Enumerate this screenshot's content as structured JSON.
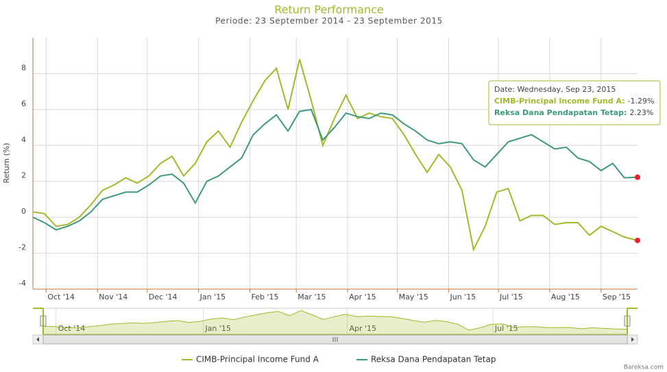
{
  "chart_data": {
    "type": "line",
    "title": "Return Performance",
    "subtitle": "Periode: 23 September 2014 - 23 September 2015",
    "y_label": "Return (%)",
    "credits": "Bareksa.com",
    "x": [
      "2014-09-23",
      "2014-09-30",
      "2014-10-07",
      "2014-10-14",
      "2014-10-21",
      "2014-10-28",
      "2014-11-04",
      "2014-11-11",
      "2014-11-18",
      "2014-11-25",
      "2014-12-02",
      "2014-12-09",
      "2014-12-16",
      "2014-12-23",
      "2014-12-30",
      "2015-01-06",
      "2015-01-13",
      "2015-01-20",
      "2015-01-27",
      "2015-02-03",
      "2015-02-10",
      "2015-02-17",
      "2015-02-24",
      "2015-03-03",
      "2015-03-10",
      "2015-03-17",
      "2015-03-24",
      "2015-03-31",
      "2015-04-07",
      "2015-04-14",
      "2015-04-21",
      "2015-04-28",
      "2015-05-05",
      "2015-05-12",
      "2015-05-19",
      "2015-05-26",
      "2015-06-02",
      "2015-06-09",
      "2015-06-16",
      "2015-06-23",
      "2015-06-30",
      "2015-07-07",
      "2015-07-14",
      "2015-07-21",
      "2015-07-28",
      "2015-08-04",
      "2015-08-11",
      "2015-08-18",
      "2015-08-25",
      "2015-09-01",
      "2015-09-08",
      "2015-09-15",
      "2015-09-23"
    ],
    "series": [
      {
        "name": "CIMB-Principal Income Fund A",
        "color": "#a3b92a",
        "values": [
          0.3,
          0.2,
          -0.5,
          -0.4,
          0.0,
          0.7,
          1.5,
          1.8,
          2.2,
          1.9,
          2.3,
          3.0,
          3.4,
          2.3,
          3.0,
          4.2,
          4.8,
          3.9,
          5.3,
          6.5,
          7.6,
          8.3,
          6.0,
          8.8,
          6.5,
          4.0,
          5.5,
          6.8,
          5.5,
          5.8,
          5.6,
          5.5,
          4.6,
          3.5,
          2.5,
          3.5,
          2.8,
          1.5,
          -1.8,
          -0.5,
          1.4,
          1.6,
          -0.2,
          0.1,
          0.1,
          -0.4,
          -0.3,
          -0.3,
          -1.0,
          -0.5,
          -0.8,
          -1.1,
          -1.29
        ]
      },
      {
        "name": "Reksa Dana Pendapatan Tetap",
        "color": "#3d9a78",
        "values": [
          0.0,
          -0.3,
          -0.7,
          -0.5,
          -0.2,
          0.3,
          1.0,
          1.2,
          1.4,
          1.4,
          1.8,
          2.3,
          2.4,
          1.9,
          0.8,
          2.0,
          2.3,
          2.8,
          3.3,
          4.6,
          5.2,
          5.7,
          4.8,
          5.9,
          6.0,
          4.3,
          5.0,
          5.8,
          5.6,
          5.5,
          5.8,
          5.7,
          5.2,
          4.8,
          4.3,
          4.1,
          4.2,
          4.1,
          3.2,
          2.8,
          3.5,
          4.2,
          4.4,
          4.6,
          4.2,
          3.8,
          3.9,
          3.3,
          3.1,
          2.6,
          3.0,
          2.2,
          2.23
        ]
      }
    ],
    "ylim": [
      -4,
      10
    ],
    "yticks": [
      -4,
      -2,
      0,
      2,
      4,
      6,
      8
    ],
    "xlim": [
      "2014-09-23",
      "2015-09-23"
    ],
    "xticks": [
      {
        "value": "2014-10-01",
        "label": "Oct '14"
      },
      {
        "value": "2014-11-01",
        "label": "Nov '14"
      },
      {
        "value": "2014-12-01",
        "label": "Dec '14"
      },
      {
        "value": "2015-01-01",
        "label": "Jan '15"
      },
      {
        "value": "2015-02-01",
        "label": "Feb '15"
      },
      {
        "value": "2015-03-01",
        "label": "Mar '15"
      },
      {
        "value": "2015-04-01",
        "label": "Apr '15"
      },
      {
        "value": "2015-05-01",
        "label": "May '15"
      },
      {
        "value": "2015-06-01",
        "label": "Jun '15"
      },
      {
        "value": "2015-07-01",
        "label": "Jul '15"
      },
      {
        "value": "2015-08-01",
        "label": "Aug '15"
      },
      {
        "value": "2015-09-01",
        "label": "Sep '15"
      }
    ],
    "navigator_xticks": [
      {
        "value": "2014-10-01",
        "label": "Oct '14"
      },
      {
        "value": "2015-01-01",
        "label": "Jan '15"
      },
      {
        "value": "2015-04-01",
        "label": "Apr '15"
      },
      {
        "value": "2015-07-01",
        "label": "Jul '15"
      }
    ],
    "grid": true,
    "legend": "bottom",
    "tooltip": {
      "date": "Date: Wednesday, Sep 23, 2015",
      "rows": [
        {
          "label": "CIMB-Principal Income Fund A:",
          "value": "-1.29%"
        },
        {
          "label": "Reksa Dana Pendapatan Tetap:",
          "value": "2.23%"
        }
      ]
    }
  }
}
